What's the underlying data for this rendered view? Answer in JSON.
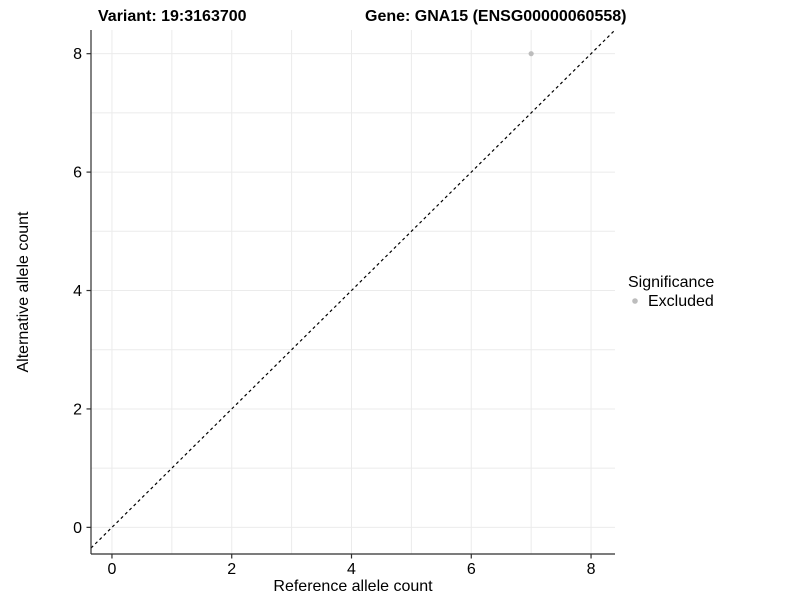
{
  "chart_data": {
    "type": "scatter",
    "title_variant": "Variant: 19:3163700",
    "title_gene": "Gene: GNA15 (ENSG00000060558)",
    "xlabel": "Reference allele count",
    "ylabel": "Alternative allele count",
    "xlim": [
      -0.35,
      8.4
    ],
    "ylim": [
      -0.45,
      8.4
    ],
    "xticks": [
      0,
      2,
      4,
      6,
      8
    ],
    "yticks": [
      0,
      2,
      4,
      6,
      8
    ],
    "grid": {
      "show": true,
      "interval": 1,
      "color": "#ebebeb"
    },
    "axis_color": "#2f2f2f",
    "series": [
      {
        "name": "Excluded",
        "color": "#bdbdbd",
        "marker": "circle",
        "points": [
          {
            "x": 7,
            "y": 8
          }
        ]
      }
    ],
    "reference_line": {
      "kind": "identity",
      "equation": "y = x",
      "style": "dashed",
      "color": "#000000"
    },
    "legend": {
      "position": "right",
      "title": "Significance",
      "items": [
        {
          "label": "Excluded",
          "color": "#bdbdbd",
          "marker": "circle"
        }
      ]
    }
  }
}
